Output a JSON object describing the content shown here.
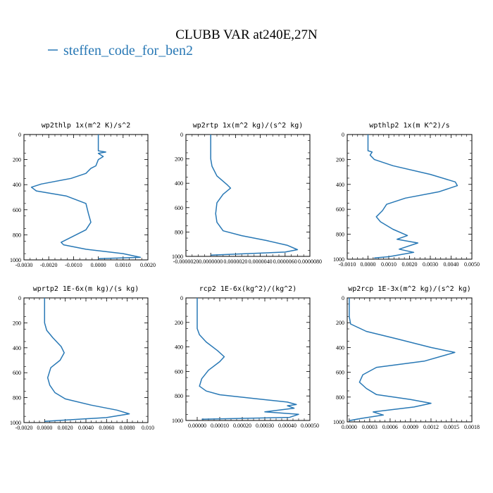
{
  "figure_title": "CLUBB VAR at240E,27N",
  "legend_label": "steffen_code_for_ben2",
  "line_color": "#2878b5",
  "chart_data": [
    {
      "type": "line",
      "title": "wp2thlp   1x(m^2 K)/s^2",
      "xlim": [
        -0.003,
        0.002
      ],
      "ylim": [
        0,
        1000
      ],
      "yreversed": true,
      "xticks": [
        "-0.0030",
        "-0.0020",
        "-0.0010",
        "0.0000",
        "0.0010",
        "0.0020"
      ],
      "yticks": [
        "0",
        "200",
        "400",
        "600",
        "800",
        "1000"
      ],
      "profile": [
        [
          0.0,
          0
        ],
        [
          0.0,
          100
        ],
        [
          0.0,
          130
        ],
        [
          0.0003,
          140
        ],
        [
          0.0,
          150
        ],
        [
          0.0002,
          175
        ],
        [
          0.0,
          200
        ],
        [
          -0.0001,
          250
        ],
        [
          -0.0003,
          270
        ],
        [
          -0.0005,
          310
        ],
        [
          -0.0011,
          350
        ],
        [
          -0.0023,
          395
        ],
        [
          -0.0027,
          420
        ],
        [
          -0.0025,
          450
        ],
        [
          -0.0013,
          490
        ],
        [
          -0.0005,
          550
        ],
        [
          -0.0004,
          630
        ],
        [
          -0.0003,
          700
        ],
        [
          -0.0005,
          760
        ],
        [
          -0.001,
          810
        ],
        [
          -0.0015,
          860
        ],
        [
          -0.0014,
          880
        ],
        [
          -0.0005,
          915
        ],
        [
          0.001,
          950
        ],
        [
          0.0017,
          980
        ],
        [
          0.0,
          990
        ]
      ]
    },
    {
      "type": "line",
      "title": "wp2rtp   1x(m^2 kg)/(s^2 kg)",
      "xlim": [
        -2e-06,
        8e-06
      ],
      "ylim": [
        0,
        1000
      ],
      "yreversed": true,
      "xticks": [
        "-0.0000020",
        "0.0000000",
        "0.0000020",
        "0.0000040",
        "0.0000060",
        "0.0000080"
      ],
      "yticks": [
        "0",
        "200",
        "400",
        "600",
        "800",
        "1000"
      ],
      "profile": [
        [
          0.0,
          0
        ],
        [
          0.0,
          100
        ],
        [
          0.0,
          200
        ],
        [
          1e-07,
          260
        ],
        [
          5e-07,
          340
        ],
        [
          1.3e-06,
          410
        ],
        [
          1.6e-06,
          440
        ],
        [
          1e-06,
          490
        ],
        [
          5e-07,
          560
        ],
        [
          4e-07,
          650
        ],
        [
          5e-07,
          720
        ],
        [
          1e-06,
          790
        ],
        [
          2.5e-06,
          830
        ],
        [
          4.5e-06,
          870
        ],
        [
          6.2e-06,
          910
        ],
        [
          7e-06,
          945
        ],
        [
          6e-06,
          965
        ],
        [
          0.0,
          990
        ]
      ]
    },
    {
      "type": "line",
      "title": "wpthlp2   1x(m K^2)/s",
      "xlim": [
        -0.001,
        0.005
      ],
      "ylim": [
        0,
        1000
      ],
      "yreversed": true,
      "xticks": [
        "-0.0010",
        "0.0000",
        "0.0010",
        "0.0020",
        "0.0030",
        "0.0040",
        "0.0050"
      ],
      "yticks": [
        "0",
        "200",
        "400",
        "600",
        "800",
        "1000"
      ],
      "profile": [
        [
          0.0,
          0
        ],
        [
          0.0,
          100
        ],
        [
          0.0,
          130
        ],
        [
          0.0002,
          140
        ],
        [
          0.0001,
          165
        ],
        [
          0.0003,
          200
        ],
        [
          0.0012,
          250
        ],
        [
          0.003,
          320
        ],
        [
          0.0042,
          380
        ],
        [
          0.0043,
          410
        ],
        [
          0.0034,
          460
        ],
        [
          0.0018,
          510
        ],
        [
          0.0009,
          560
        ],
        [
          0.0007,
          610
        ],
        [
          0.0004,
          660
        ],
        [
          0.0006,
          700
        ],
        [
          0.0012,
          760
        ],
        [
          0.0019,
          810
        ],
        [
          0.0014,
          840
        ],
        [
          0.0024,
          870
        ],
        [
          0.0015,
          920
        ],
        [
          0.0022,
          945
        ],
        [
          0.001,
          980
        ],
        [
          0.0003,
          990
        ]
      ]
    },
    {
      "type": "line",
      "title": "wprtp2   1E-6x(m kg)/(s kg)",
      "xlim": [
        -0.002,
        0.01
      ],
      "ylim": [
        0,
        1000
      ],
      "yreversed": true,
      "xticks": [
        "-0.0020",
        "0.0000",
        "0.0020",
        "0.0040",
        "0.0060",
        "0.0080",
        "0.010"
      ],
      "yticks": [
        "0",
        "200",
        "400",
        "600",
        "800",
        "1000"
      ],
      "profile": [
        [
          0.0,
          0
        ],
        [
          0.0,
          100
        ],
        [
          0.0,
          200
        ],
        [
          0.0002,
          260
        ],
        [
          0.0008,
          320
        ],
        [
          0.0016,
          390
        ],
        [
          0.0019,
          440
        ],
        [
          0.0015,
          500
        ],
        [
          0.0006,
          560
        ],
        [
          0.0003,
          640
        ],
        [
          0.0005,
          700
        ],
        [
          0.001,
          760
        ],
        [
          0.002,
          810
        ],
        [
          0.0045,
          860
        ],
        [
          0.007,
          900
        ],
        [
          0.0082,
          930
        ],
        [
          0.006,
          960
        ],
        [
          0.0,
          990
        ]
      ]
    },
    {
      "type": "line",
      "title": "rcp2   1E-6x(kg^2)/(kg^2)",
      "xlim": [
        -5e-05,
        0.0005
      ],
      "ylim": [
        0,
        1000
      ],
      "yreversed": true,
      "xticks": [
        "0.00000",
        "0.00010",
        "0.00020",
        "0.00030",
        "0.00040",
        "0.00050"
      ],
      "yticks": [
        "0",
        "200",
        "400",
        "600",
        "800",
        "1000"
      ],
      "profile": [
        [
          0.0,
          0
        ],
        [
          0.0,
          150
        ],
        [
          0.0,
          250
        ],
        [
          1e-05,
          300
        ],
        [
          4e-05,
          360
        ],
        [
          9e-05,
          430
        ],
        [
          0.00012,
          480
        ],
        [
          0.0001,
          520
        ],
        [
          5e-05,
          590
        ],
        [
          2e-05,
          660
        ],
        [
          1e-05,
          720
        ],
        [
          4e-05,
          760
        ],
        [
          0.0001,
          790
        ],
        [
          0.00025,
          820
        ],
        [
          0.0004,
          850
        ],
        [
          0.00044,
          870
        ],
        [
          0.0004,
          880
        ],
        [
          0.00043,
          900
        ],
        [
          0.0003,
          930
        ],
        [
          0.00045,
          950
        ],
        [
          0.00041,
          975
        ],
        [
          2e-05,
          990
        ]
      ]
    },
    {
      "type": "line",
      "title": "wp2rcp   1E-3x(m^2 kg)/(s^2 kg)",
      "xlim": [
        -3e-05,
        0.0018
      ],
      "ylim": [
        0,
        1000
      ],
      "yreversed": true,
      "xticks": [
        "0.0000",
        "0.0003",
        "0.0006",
        "0.0009",
        "0.0012",
        "0.0015",
        "0.0018"
      ],
      "yticks": [
        "0",
        "200",
        "400",
        "600",
        "800",
        "1000"
      ],
      "profile": [
        [
          0.0,
          0
        ],
        [
          0.0,
          150
        ],
        [
          2e-05,
          210
        ],
        [
          0.00025,
          270
        ],
        [
          0.0007,
          330
        ],
        [
          0.0012,
          400
        ],
        [
          0.00155,
          440
        ],
        [
          0.0011,
          510
        ],
        [
          0.0004,
          560
        ],
        [
          0.0002,
          620
        ],
        [
          0.00015,
          680
        ],
        [
          0.00025,
          730
        ],
        [
          0.0004,
          780
        ],
        [
          0.0009,
          820
        ],
        [
          0.0012,
          850
        ],
        [
          0.00095,
          880
        ],
        [
          0.00035,
          920
        ],
        [
          0.0005,
          945
        ],
        [
          0.0002,
          970
        ],
        [
          0.0,
          990
        ]
      ]
    }
  ]
}
